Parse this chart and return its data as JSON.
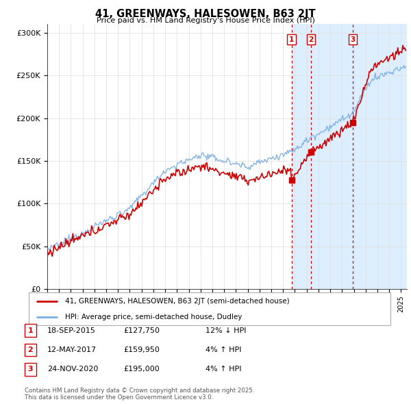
{
  "title": "41, GREENWAYS, HALESOWEN, B63 2JT",
  "subtitle": "Price paid vs. HM Land Registry's House Price Index (HPI)",
  "ylabel_ticks": [
    "£0",
    "£50K",
    "£100K",
    "£150K",
    "£200K",
    "£250K",
    "£300K"
  ],
  "ytick_values": [
    0,
    50000,
    100000,
    150000,
    200000,
    250000,
    300000
  ],
  "ylim": [
    0,
    310000
  ],
  "xlim_start": 1995.0,
  "xlim_end": 2025.5,
  "sale_dates": [
    2015.72,
    2017.36,
    2020.9
  ],
  "sale_prices": [
    127750,
    159950,
    195000
  ],
  "sale_labels": [
    "1",
    "2",
    "3"
  ],
  "legend_line1": "41, GREENWAYS, HALESOWEN, B63 2JT (semi-detached house)",
  "legend_line2": "HPI: Average price, semi-detached house, Dudley",
  "table_data": [
    [
      "1",
      "18-SEP-2015",
      "£127,750",
      "12% ↓ HPI"
    ],
    [
      "2",
      "12-MAY-2017",
      "£159,950",
      "4% ↑ HPI"
    ],
    [
      "3",
      "24-NOV-2020",
      "£195,000",
      "4% ↑ HPI"
    ]
  ],
  "footnote": "Contains HM Land Registry data © Crown copyright and database right 2025.\nThis data is licensed under the Open Government Licence v3.0.",
  "line_color_red": "#cc0000",
  "line_color_blue": "#7aade0",
  "shaded_color": "#ddeeff",
  "vline_color": "#cc0000",
  "background_color": "#ffffff",
  "grid_color": "#dddddd"
}
